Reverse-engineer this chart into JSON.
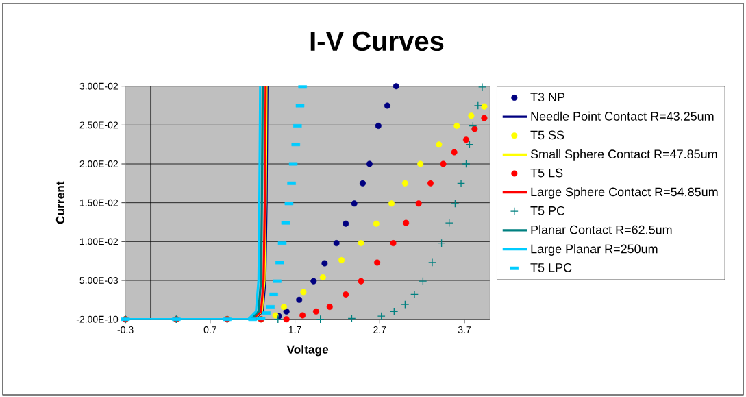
{
  "chart_data": {
    "type": "scatter",
    "title": "I-V Curves",
    "xlabel": "Voltage",
    "ylabel": "Current",
    "xlim": [
      -0.3,
      4.0
    ],
    "xticks": [
      -0.3,
      0.7,
      1.7,
      2.7,
      3.7
    ],
    "ylim": [
      -2e-10,
      0.03
    ],
    "yticks": [
      {
        "value": -2e-10,
        "label": "-2.00E-10"
      },
      {
        "value": 0.005,
        "label": "5.00E-03"
      },
      {
        "value": 0.01,
        "label": "1.00E-02"
      },
      {
        "value": 0.015,
        "label": "1.50E-02"
      },
      {
        "value": 0.02,
        "label": "2.00E-02"
      },
      {
        "value": 0.025,
        "label": "2.50E-02"
      },
      {
        "value": 0.03,
        "label": "3.00E-02"
      }
    ],
    "grid": "y",
    "legend": "right",
    "ref_lines": [
      {
        "axis": "x",
        "value": 0,
        "color": "#000000"
      }
    ],
    "series": [
      {
        "name": "T3 NP",
        "marker": "circle",
        "color": "#000080",
        "x": [
          -0.3,
          0.3,
          0.9,
          1.3,
          1.51,
          1.6,
          1.75,
          1.92,
          2.05,
          2.19,
          2.3,
          2.4,
          2.5,
          2.58,
          2.684,
          2.79,
          2.894
        ],
        "values": [
          0,
          0,
          0,
          0,
          0.0004,
          0.001,
          0.0025,
          0.0049,
          0.0072,
          0.0098,
          0.0123,
          0.0149,
          0.0175,
          0.02,
          0.0249,
          0.0275,
          0.03
        ]
      },
      {
        "name": "Needle Point Contact R=43.25um",
        "type": "line",
        "color": "#000080",
        "x": [
          1.22,
          1.32,
          1.35,
          1.365,
          1.375
        ],
        "values": [
          0,
          0.001,
          0.005,
          0.015,
          0.03
        ]
      },
      {
        "name": "T5 SS",
        "marker": "circle",
        "color": "#ffff00",
        "x": [
          -0.3,
          0.3,
          0.9,
          1.3,
          1.47,
          1.57,
          1.8,
          2.03,
          2.25,
          2.48,
          2.66,
          2.84,
          3.0,
          3.18,
          3.4,
          3.61,
          3.78,
          3.934
        ],
        "values": [
          0,
          0,
          0,
          0,
          0.0005,
          0.0016,
          0.0035,
          0.0054,
          0.0076,
          0.0098,
          0.0123,
          0.0149,
          0.0175,
          0.02,
          0.0225,
          0.0249,
          0.0262,
          0.0274
        ]
      },
      {
        "name": "Small Sphere Contact R=47.85um",
        "type": "line",
        "color": "#ffff00",
        "x": [
          1.21,
          1.31,
          1.34,
          1.355,
          1.365
        ],
        "values": [
          0,
          0.001,
          0.005,
          0.015,
          0.03
        ]
      },
      {
        "name": "T5 LS",
        "marker": "circle",
        "color": "#ff0000",
        "x": [
          -0.3,
          0.3,
          0.9,
          1.3,
          1.6,
          1.79,
          1.95,
          2.11,
          2.3,
          2.48,
          2.67,
          2.86,
          3.01,
          3.16,
          3.3,
          3.45,
          3.58,
          3.72,
          3.82,
          3.934
        ],
        "values": [
          0,
          0,
          0,
          0,
          0,
          0.0005,
          0.001,
          0.0016,
          0.0032,
          0.0049,
          0.0073,
          0.0098,
          0.0124,
          0.0149,
          0.0175,
          0.02,
          0.0215,
          0.0231,
          0.0245,
          0.0259
        ]
      },
      {
        "name": "Large Sphere Contact R=54.85um",
        "type": "line",
        "color": "#ff0000",
        "x": [
          1.2,
          1.3,
          1.33,
          1.345,
          1.355
        ],
        "values": [
          0,
          0.001,
          0.005,
          0.015,
          0.03
        ]
      },
      {
        "name": "T5 PC",
        "marker": "cross",
        "color": "#008080",
        "x": [
          -0.3,
          0.3,
          0.9,
          1.5,
          2.0,
          2.37,
          2.72,
          2.87,
          3.0,
          3.11,
          3.21,
          3.32,
          3.43,
          3.52,
          3.59,
          3.66,
          3.72,
          3.76,
          3.8,
          3.86,
          3.91
        ],
        "values": [
          0,
          0,
          0,
          0,
          0,
          0.0001,
          0.0004,
          0.001,
          0.0019,
          0.0032,
          0.0049,
          0.0073,
          0.0098,
          0.0124,
          0.0149,
          0.0175,
          0.02,
          0.0225,
          0.0249,
          0.0275,
          0.0299
        ]
      },
      {
        "name": "Planar Contact R=62.5um",
        "type": "line",
        "color": "#008080",
        "x": [
          1.18,
          1.27,
          1.3,
          1.31,
          1.32
        ],
        "values": [
          0,
          0.001,
          0.005,
          0.015,
          0.03
        ]
      },
      {
        "name": "Large Planar R=250um",
        "type": "line",
        "color": "#00ccff",
        "x": [
          -0.3,
          1.15,
          1.24,
          1.27,
          1.28,
          1.29
        ],
        "values": [
          0,
          0,
          0.001,
          0.005,
          0.015,
          0.03
        ]
      },
      {
        "name": "T5 LPC",
        "marker": "square",
        "color": "#00ccff",
        "x": [
          -0.3,
          0.3,
          0.9,
          1.2,
          1.3,
          1.36,
          1.41,
          1.45,
          1.49,
          1.52,
          1.55,
          1.59,
          1.63,
          1.66,
          1.68,
          1.71,
          1.73,
          1.76,
          1.79
        ],
        "values": [
          0,
          0,
          0,
          0,
          0.0001,
          0.0008,
          0.0016,
          0.0032,
          0.0049,
          0.0073,
          0.0098,
          0.0124,
          0.0149,
          0.0175,
          0.02,
          0.0225,
          0.0249,
          0.0275,
          0.0299
        ]
      }
    ]
  }
}
